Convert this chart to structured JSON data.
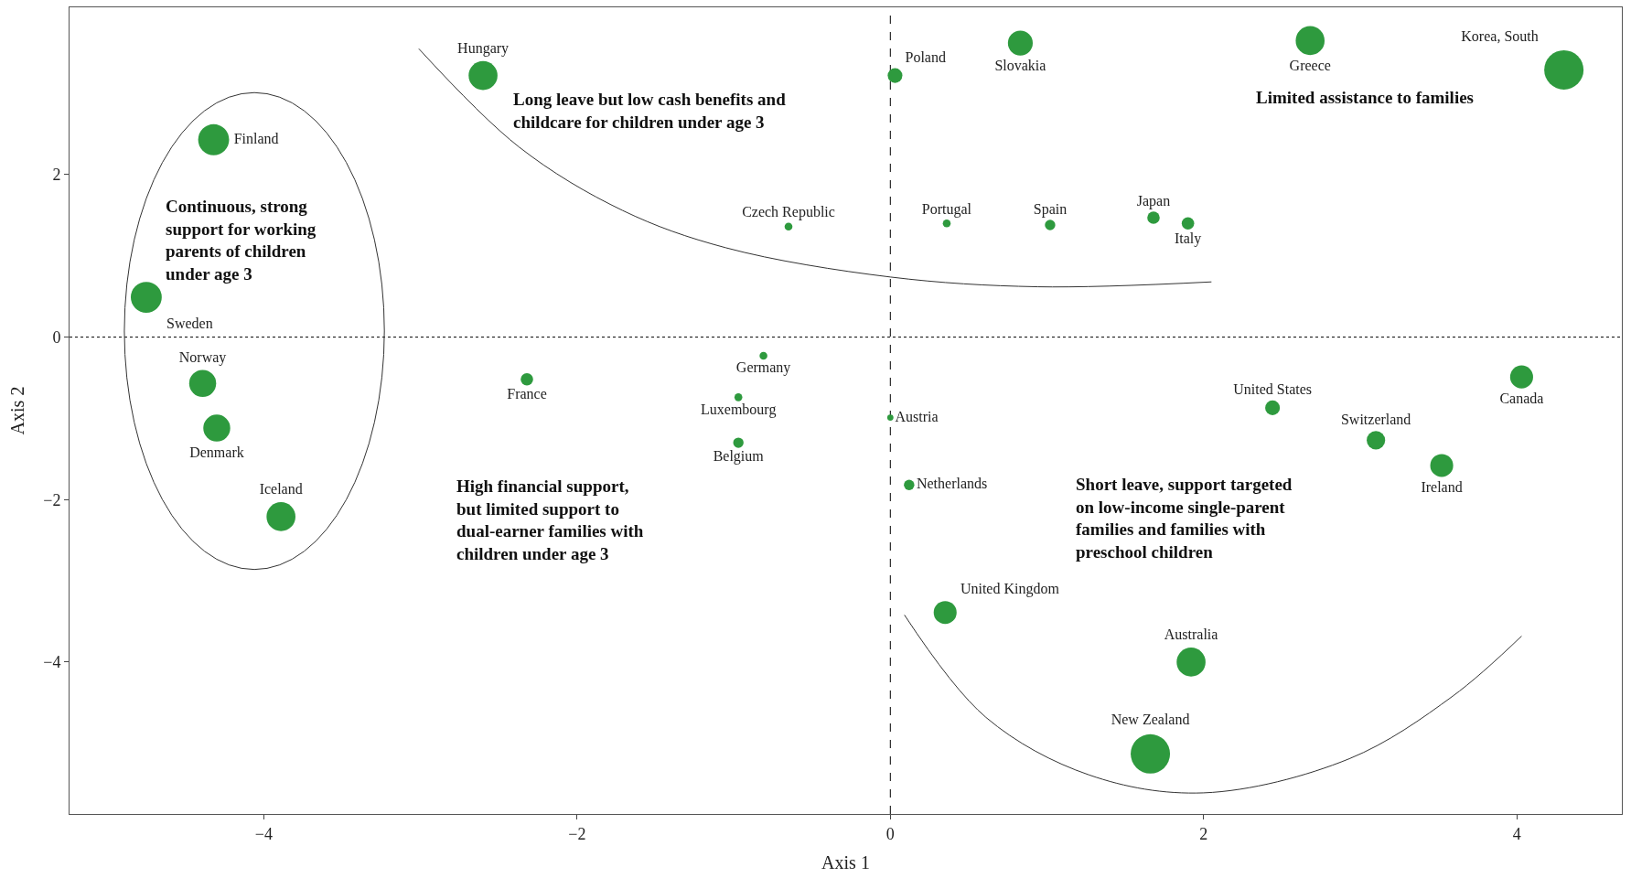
{
  "chart_data": {
    "type": "bubble",
    "xlabel": "Axis 1",
    "ylabel": "Axis 2",
    "xlim": [
      -5.24,
      4.67
    ],
    "ylim": [
      -5.87,
      4.06
    ],
    "xticks": [
      -4,
      -2,
      0,
      2,
      4
    ],
    "yticks": [
      -4,
      -2,
      0,
      2
    ],
    "grid": false,
    "legend": false,
    "marker": "circle",
    "ref_lines": [
      {
        "axis": "y",
        "value": 0,
        "line_style": "dotted",
        "color": "#000000"
      },
      {
        "axis": "x",
        "value": 0,
        "line_style": "dashed",
        "color": "#000000"
      }
    ],
    "annotations": [
      "Long leave but low cash benefits and\nchildcare for children under age 3",
      "Limited assistance to families",
      "Continuous, strong\nsupport for working\nparents of children\nunder age 3",
      "High financial support,\nbut limited support to\ndual-earner families with\nchildren under age 3",
      "Short leave, support targeted\non low-income single-parent\nfamilies and families with\npreschool children"
    ],
    "series": [
      {
        "name": "Hungary",
        "color": "#2e9a3e",
        "x": [
          -2.6
        ],
        "values": [
          3.22
        ],
        "sizes": [
          0.54
        ]
      },
      {
        "name": "Finland",
        "color": "#2e9a3e",
        "x": [
          -4.32
        ],
        "values": [
          2.43
        ],
        "sizes": [
          0.62
        ]
      },
      {
        "name": "Sweden",
        "color": "#2e9a3e",
        "x": [
          -4.75
        ],
        "values": [
          0.49
        ],
        "sizes": [
          0.62
        ]
      },
      {
        "name": "Norway",
        "color": "#2e9a3e",
        "x": [
          -4.39
        ],
        "values": [
          -0.57
        ],
        "sizes": [
          0.47
        ]
      },
      {
        "name": "Denmark",
        "color": "#2e9a3e",
        "x": [
          -4.3
        ],
        "values": [
          -1.12
        ],
        "sizes": [
          0.47
        ]
      },
      {
        "name": "Iceland",
        "color": "#2e9a3e",
        "x": [
          -3.89
        ],
        "values": [
          -2.21
        ],
        "sizes": [
          0.54
        ]
      },
      {
        "name": "Poland",
        "color": "#2e9a3e",
        "x": [
          0.03
        ],
        "values": [
          3.22
        ],
        "sizes": [
          0.14
        ]
      },
      {
        "name": "Slovakia",
        "color": "#2e9a3e",
        "x": [
          0.83
        ],
        "values": [
          3.62
        ],
        "sizes": [
          0.4
        ]
      },
      {
        "name": "Greece",
        "color": "#2e9a3e",
        "x": [
          2.68
        ],
        "values": [
          3.65
        ],
        "sizes": [
          0.54
        ]
      },
      {
        "name": "Korea, South",
        "color": "#2e9a3e",
        "x": [
          4.3
        ],
        "values": [
          3.29
        ],
        "sizes": [
          1
        ]
      },
      {
        "name": "Czech Republic",
        "color": "#2e9a3e",
        "x": [
          -0.65
        ],
        "values": [
          1.36
        ],
        "sizes": [
          0.04
        ]
      },
      {
        "name": "Portugal",
        "color": "#2e9a3e",
        "x": [
          0.36
        ],
        "values": [
          1.4
        ],
        "sizes": [
          0.04
        ]
      },
      {
        "name": "Spain",
        "color": "#2e9a3e",
        "x": [
          1.02
        ],
        "values": [
          1.38
        ],
        "sizes": [
          0.07
        ]
      },
      {
        "name": "Japan",
        "color": "#2e9a3e",
        "x": [
          1.68
        ],
        "values": [
          1.47
        ],
        "sizes": [
          0.1
        ]
      },
      {
        "name": "Italy",
        "color": "#2e9a3e",
        "x": [
          1.9
        ],
        "values": [
          1.4
        ],
        "sizes": [
          0.1
        ]
      },
      {
        "name": "France",
        "color": "#2e9a3e",
        "x": [
          -2.32
        ],
        "values": [
          -0.52
        ],
        "sizes": [
          0.1
        ]
      },
      {
        "name": "Germany",
        "color": "#2e9a3e",
        "x": [
          -0.81
        ],
        "values": [
          -0.23
        ],
        "sizes": [
          0.04
        ]
      },
      {
        "name": "Luxembourg",
        "color": "#2e9a3e",
        "x": [
          -0.97
        ],
        "values": [
          -0.74
        ],
        "sizes": [
          0.04
        ]
      },
      {
        "name": "Belgium",
        "color": "#2e9a3e",
        "x": [
          -0.97
        ],
        "values": [
          -1.3
        ],
        "sizes": [
          0.07
        ]
      },
      {
        "name": "Austria",
        "color": "#2e9a3e",
        "x": [
          0.0
        ],
        "values": [
          -0.99
        ],
        "sizes": [
          0.025
        ]
      },
      {
        "name": "Netherlands",
        "color": "#2e9a3e",
        "x": [
          0.12
        ],
        "values": [
          -1.82
        ],
        "sizes": [
          0.07
        ]
      },
      {
        "name": "United States",
        "color": "#2e9a3e",
        "x": [
          2.44
        ],
        "values": [
          -0.87
        ],
        "sizes": [
          0.14
        ]
      },
      {
        "name": "Switzerland",
        "color": "#2e9a3e",
        "x": [
          3.1
        ],
        "values": [
          -1.27
        ],
        "sizes": [
          0.22
        ]
      },
      {
        "name": "Canada",
        "color": "#2e9a3e",
        "x": [
          4.03
        ],
        "values": [
          -0.49
        ],
        "sizes": [
          0.34
        ]
      },
      {
        "name": "Ireland",
        "color": "#2e9a3e",
        "x": [
          3.52
        ],
        "values": [
          -1.58
        ],
        "sizes": [
          0.34
        ]
      },
      {
        "name": "United Kingdom",
        "color": "#2e9a3e",
        "x": [
          0.35
        ],
        "values": [
          -3.39
        ],
        "sizes": [
          0.34
        ]
      },
      {
        "name": "Australia",
        "color": "#2e9a3e",
        "x": [
          1.92
        ],
        "values": [
          -4.0
        ],
        "sizes": [
          0.54
        ]
      },
      {
        "name": "New Zealand",
        "color": "#2e9a3e",
        "x": [
          1.66
        ],
        "values": [
          -5.13
        ],
        "sizes": [
          1
        ]
      },
      {
        "type": "line",
        "marker": "none",
        "color": "#333333",
        "x": [
          -3.01,
          -2.37,
          -1.71,
          -1.05,
          0,
          0.94,
          2.05
        ],
        "values": [
          3.55,
          2.34,
          1.56,
          1.1,
          0.74,
          0.62,
          0.68
        ]
      },
      {
        "type": "line",
        "marker": "none",
        "color": "#333333",
        "x": [
          0.09,
          0.61,
          1.27,
          2.0,
          2.93,
          3.59,
          4.03
        ],
        "values": [
          -3.42,
          -4.68,
          -5.39,
          -5.61,
          -5.19,
          -4.42,
          -3.68
        ]
      }
    ]
  }
}
